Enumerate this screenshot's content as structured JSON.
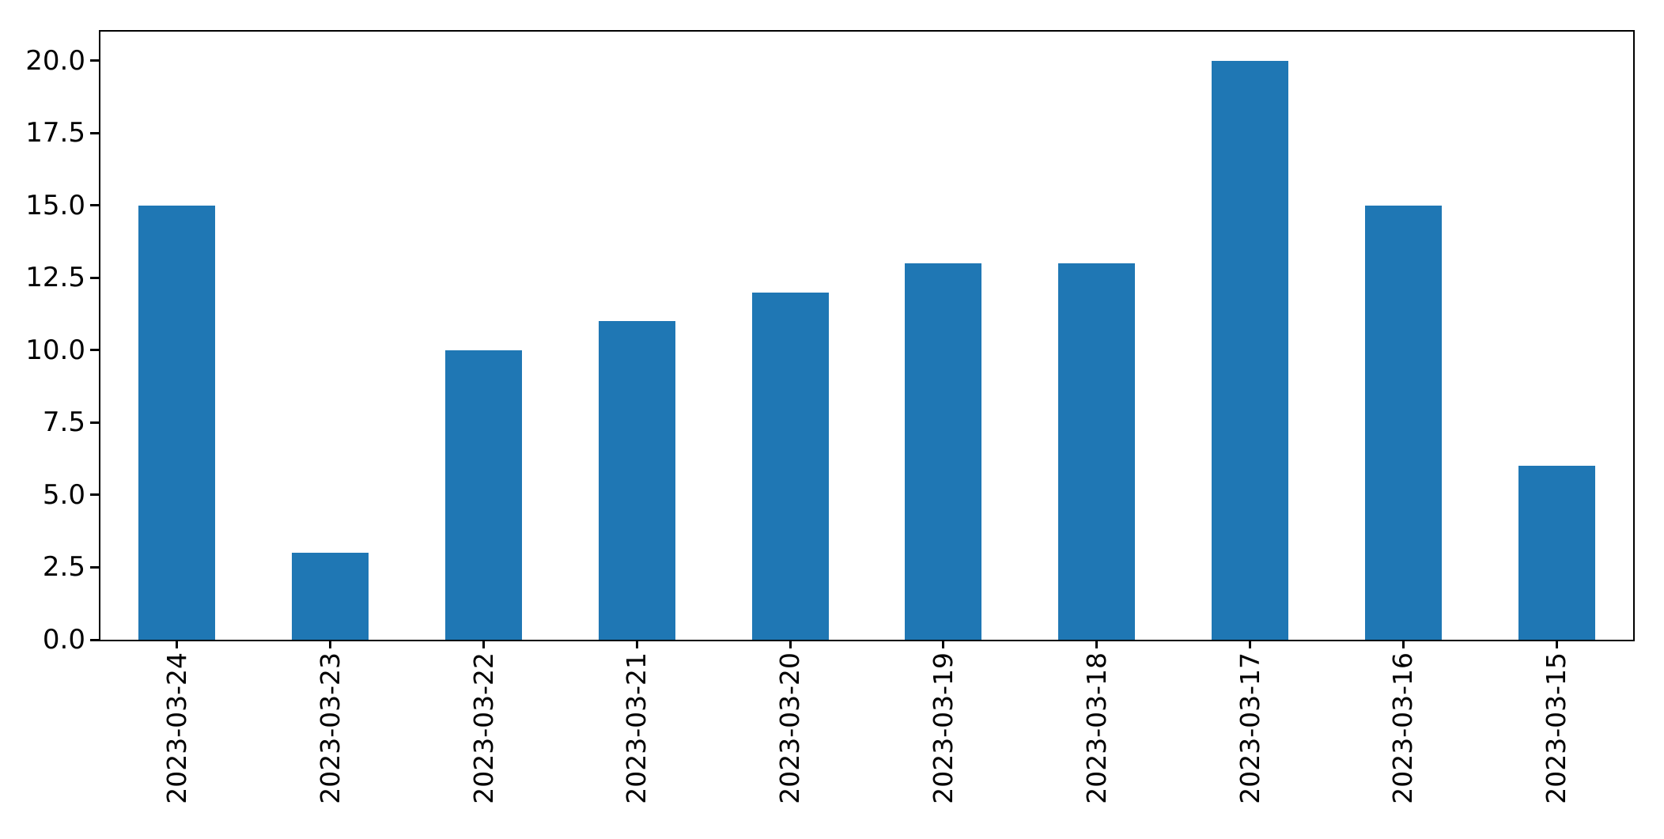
{
  "chart_data": {
    "type": "bar",
    "title": "",
    "xlabel": "",
    "ylabel": "",
    "categories": [
      "2023-03-24",
      "2023-03-23",
      "2023-03-22",
      "2023-03-21",
      "2023-03-20",
      "2023-03-19",
      "2023-03-18",
      "2023-03-17",
      "2023-03-16",
      "2023-03-15"
    ],
    "values": [
      15,
      3,
      10,
      11,
      12,
      13,
      13,
      20,
      15,
      6
    ],
    "ytick_labels": [
      "0.0",
      "2.5",
      "5.0",
      "7.5",
      "10.0",
      "12.5",
      "15.0",
      "17.5",
      "20.0"
    ],
    "ylim": [
      0,
      21
    ],
    "bar_color": "#1f77b4",
    "bar_width_fraction": 0.5,
    "xtick_rotation_deg": 90,
    "grid": false,
    "legend": "none",
    "spine_color": "#000000",
    "background_color": "#ffffff"
  }
}
